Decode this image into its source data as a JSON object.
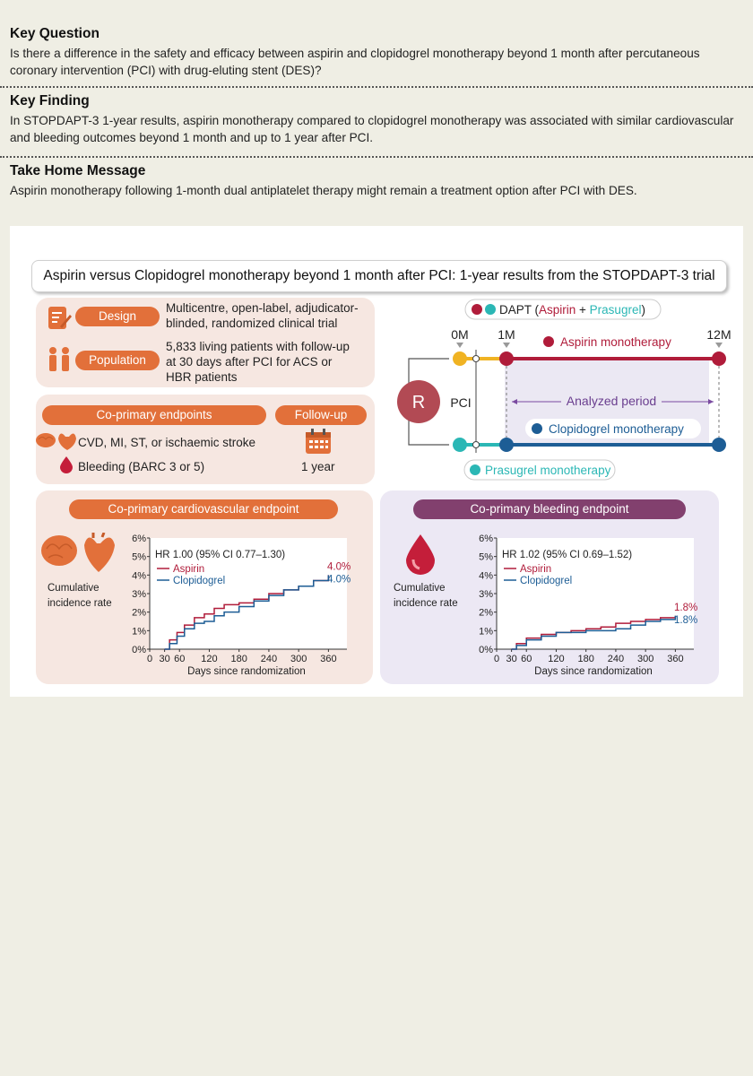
{
  "key_question": {
    "heading": "Key Question",
    "text": "Is there a difference in the safety and efficacy between aspirin and clopidogrel monotherapy beyond 1 month after percutaneous coronary intervention (PCI) with drug-eluting stent (DES)?"
  },
  "key_finding": {
    "heading": "Key Finding",
    "text": "In STOPDAPT-3 1-year results, aspirin monotherapy compared to clopidogrel monotherapy was associated with similar cardiovascular and bleeding outcomes beyond 1 month and up to 1 year after PCI."
  },
  "take_home": {
    "heading": "Take Home Message",
    "text": "Aspirin monotherapy following 1-month dual antiplatelet therapy might remain a treatment option after PCI with DES."
  },
  "abstract": {
    "title": "Aspirin versus Clopidogrel monotherapy beyond 1 month after PCI: 1-year results from the STOPDAPT-3 trial",
    "design_label": "Design",
    "design_text": "Multicentre, open-label, adjudicator-blinded, randomized clinical trial",
    "population_label": "Population",
    "population_text": "5,833 living patients with follow-up at 30 days after PCI for ACS or HBR patients",
    "endpoints_label": "Co-primary endpoints",
    "endpoint_1": "CVD, MI, ST, or ischaemic stroke",
    "endpoint_2": "Bleeding (BARC 3 or 5)",
    "followup_label": "Follow-up",
    "followup_value": "1 year"
  },
  "timeline": {
    "dapt_prefix": "DAPT (",
    "dapt_aspirin": "Aspirin",
    "dapt_plus": " + ",
    "dapt_prasugrel": "Prasugrel",
    "dapt_suffix": ")",
    "m0": "0M",
    "m1": "1M",
    "m12": "12M",
    "r_label": "R",
    "pci_label": "PCI",
    "aspirin_mono": "Aspirin monotherapy",
    "clopidogrel_mono": "Clopidogrel monotherapy",
    "analyzed_period": "Analyzed period",
    "prasugrel_mono": "Prasugrel monotherapy"
  },
  "colors": {
    "aspirin": "#b01c3a",
    "clopidogrel": "#1d5d95",
    "prasugrel": "#2bb7b5",
    "dapt_yellow": "#f0b323",
    "orange": "#e2703a",
    "purple": "#82406e"
  },
  "chart_data": [
    {
      "type": "line",
      "title": "Co-primary cardiovascular endpoint",
      "hr_text": "HR 1.00 (95% CI 0.77–1.30)",
      "ylabel": "Cumulative incidence rate",
      "xlabel": "Days since randomization",
      "x_ticks": [
        0,
        30,
        60,
        120,
        180,
        240,
        300,
        360
      ],
      "y_ticks": [
        "0%",
        "1%",
        "2%",
        "3%",
        "4%",
        "5%",
        "6%"
      ],
      "xlim": [
        0,
        390
      ],
      "ylim": [
        0,
        6
      ],
      "series": [
        {
          "name": "Aspirin",
          "end_label": "4.0%",
          "x": [
            30,
            40,
            55,
            70,
            90,
            110,
            130,
            150,
            180,
            210,
            240,
            270,
            300,
            330,
            360
          ],
          "y": [
            0,
            0.5,
            0.9,
            1.3,
            1.7,
            1.9,
            2.2,
            2.4,
            2.5,
            2.7,
            3.0,
            3.2,
            3.4,
            3.7,
            4.0
          ]
        },
        {
          "name": "Clopidogrel",
          "end_label": "4.0%",
          "x": [
            30,
            40,
            55,
            70,
            90,
            110,
            130,
            150,
            180,
            210,
            240,
            270,
            300,
            330,
            360
          ],
          "y": [
            0,
            0.3,
            0.7,
            1.1,
            1.4,
            1.5,
            1.8,
            2.0,
            2.3,
            2.6,
            2.9,
            3.2,
            3.4,
            3.7,
            4.0
          ]
        }
      ]
    },
    {
      "type": "line",
      "title": "Co-primary bleeding endpoint",
      "hr_text": "HR 1.02 (95% CI 0.69–1.52)",
      "ylabel": "Cumulative incidence rate",
      "xlabel": "Days since randomization",
      "x_ticks": [
        0,
        30,
        60,
        120,
        180,
        240,
        300,
        360
      ],
      "y_ticks": [
        "0%",
        "1%",
        "2%",
        "3%",
        "4%",
        "5%",
        "6%"
      ],
      "xlim": [
        0,
        390
      ],
      "ylim": [
        0,
        6
      ],
      "series": [
        {
          "name": "Aspirin",
          "end_label": "1.8%",
          "x": [
            30,
            40,
            60,
            90,
            120,
            150,
            180,
            210,
            240,
            270,
            300,
            330,
            360
          ],
          "y": [
            0,
            0.3,
            0.6,
            0.8,
            0.9,
            1.0,
            1.1,
            1.2,
            1.4,
            1.5,
            1.6,
            1.7,
            1.8
          ]
        },
        {
          "name": "Clopidogrel",
          "end_label": "1.8%",
          "x": [
            30,
            40,
            60,
            90,
            120,
            150,
            180,
            210,
            240,
            270,
            300,
            330,
            360
          ],
          "y": [
            0,
            0.2,
            0.5,
            0.7,
            0.9,
            0.9,
            1.0,
            1.0,
            1.1,
            1.3,
            1.5,
            1.6,
            1.8
          ]
        }
      ]
    }
  ]
}
